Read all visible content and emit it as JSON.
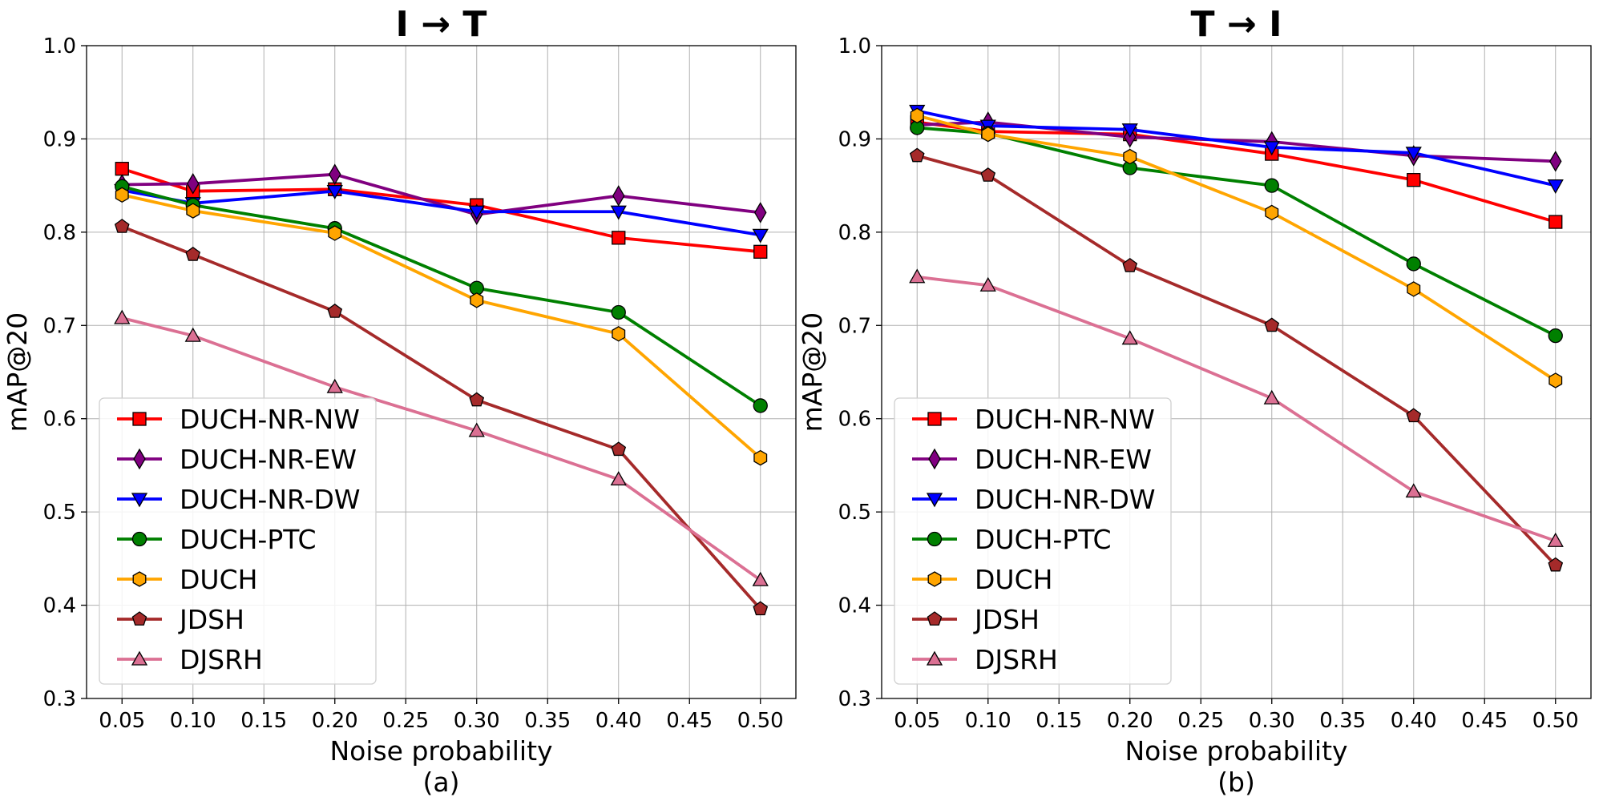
{
  "chart_data": [
    {
      "type": "line",
      "title": "I → T",
      "xlabel": "Noise probability",
      "ylabel": "mAP@20",
      "caption": "(a)",
      "xlim": [
        0.025,
        0.525
      ],
      "ylim": [
        0.3,
        1.0
      ],
      "xticks": [
        "0.05",
        "0.10",
        "0.15",
        "0.20",
        "0.25",
        "0.30",
        "0.35",
        "0.40",
        "0.45",
        "0.50"
      ],
      "yticks": [
        "0.3",
        "0.4",
        "0.5",
        "0.6",
        "0.7",
        "0.8",
        "0.9",
        "1.0"
      ],
      "grid": true,
      "legend_position": "lower-left",
      "x": [
        0.05,
        0.1,
        0.2,
        0.3,
        0.4,
        0.5
      ],
      "series": [
        {
          "name": "DUCH-NR-NW",
          "color": "#ff0000",
          "marker": "square",
          "values": [
            0.868,
            0.844,
            0.846,
            0.829,
            0.794,
            0.779
          ]
        },
        {
          "name": "DUCH-NR-EW",
          "color": "#800080",
          "marker": "diamond",
          "values": [
            0.851,
            0.852,
            0.862,
            0.819,
            0.839,
            0.821
          ]
        },
        {
          "name": "DUCH-NR-DW",
          "color": "#0000ff",
          "marker": "triangle-down",
          "values": [
            0.845,
            0.831,
            0.844,
            0.822,
            0.822,
            0.797
          ]
        },
        {
          "name": "DUCH-PTC",
          "color": "#008000",
          "marker": "circle",
          "values": [
            0.849,
            0.829,
            0.804,
            0.74,
            0.714,
            0.614
          ]
        },
        {
          "name": "DUCH",
          "color": "#ffa500",
          "marker": "hexagon",
          "values": [
            0.84,
            0.823,
            0.799,
            0.727,
            0.691,
            0.558
          ]
        },
        {
          "name": "JDSH",
          "color": "#a52a2a",
          "marker": "pentagon",
          "values": [
            0.806,
            0.776,
            0.715,
            0.62,
            0.567,
            0.396
          ]
        },
        {
          "name": "DJSRH",
          "color": "#db7093",
          "marker": "triangle-up",
          "values": [
            0.708,
            0.689,
            0.634,
            0.587,
            0.535,
            0.427
          ]
        }
      ]
    },
    {
      "type": "line",
      "title": "T → I",
      "xlabel": "Noise probability",
      "ylabel": "mAP@20",
      "caption": "(b)",
      "xlim": [
        0.025,
        0.525
      ],
      "ylim": [
        0.3,
        1.0
      ],
      "xticks": [
        "0.05",
        "0.10",
        "0.15",
        "0.20",
        "0.25",
        "0.30",
        "0.35",
        "0.40",
        "0.45",
        "0.50"
      ],
      "yticks": [
        "0.3",
        "0.4",
        "0.5",
        "0.6",
        "0.7",
        "0.8",
        "0.9",
        "1.0"
      ],
      "grid": true,
      "legend_position": "lower-left",
      "x": [
        0.05,
        0.1,
        0.2,
        0.3,
        0.4,
        0.5
      ],
      "series": [
        {
          "name": "DUCH-NR-NW",
          "color": "#ff0000",
          "marker": "square",
          "values": [
            0.918,
            0.908,
            0.905,
            0.884,
            0.856,
            0.811
          ]
        },
        {
          "name": "DUCH-NR-EW",
          "color": "#800080",
          "marker": "diamond",
          "values": [
            0.915,
            0.918,
            0.902,
            0.897,
            0.882,
            0.876
          ]
        },
        {
          "name": "DUCH-NR-DW",
          "color": "#0000ff",
          "marker": "triangle-down",
          "values": [
            0.93,
            0.914,
            0.91,
            0.891,
            0.885,
            0.85
          ]
        },
        {
          "name": "DUCH-PTC",
          "color": "#008000",
          "marker": "circle",
          "values": [
            0.912,
            0.906,
            0.869,
            0.85,
            0.766,
            0.689
          ]
        },
        {
          "name": "DUCH",
          "color": "#ffa500",
          "marker": "hexagon",
          "values": [
            0.925,
            0.905,
            0.881,
            0.821,
            0.739,
            0.641
          ]
        },
        {
          "name": "JDSH",
          "color": "#a52a2a",
          "marker": "pentagon",
          "values": [
            0.882,
            0.861,
            0.764,
            0.7,
            0.603,
            0.443
          ]
        },
        {
          "name": "DJSRH",
          "color": "#db7093",
          "marker": "triangle-up",
          "values": [
            0.752,
            0.743,
            0.686,
            0.622,
            0.522,
            0.469
          ]
        }
      ]
    }
  ]
}
